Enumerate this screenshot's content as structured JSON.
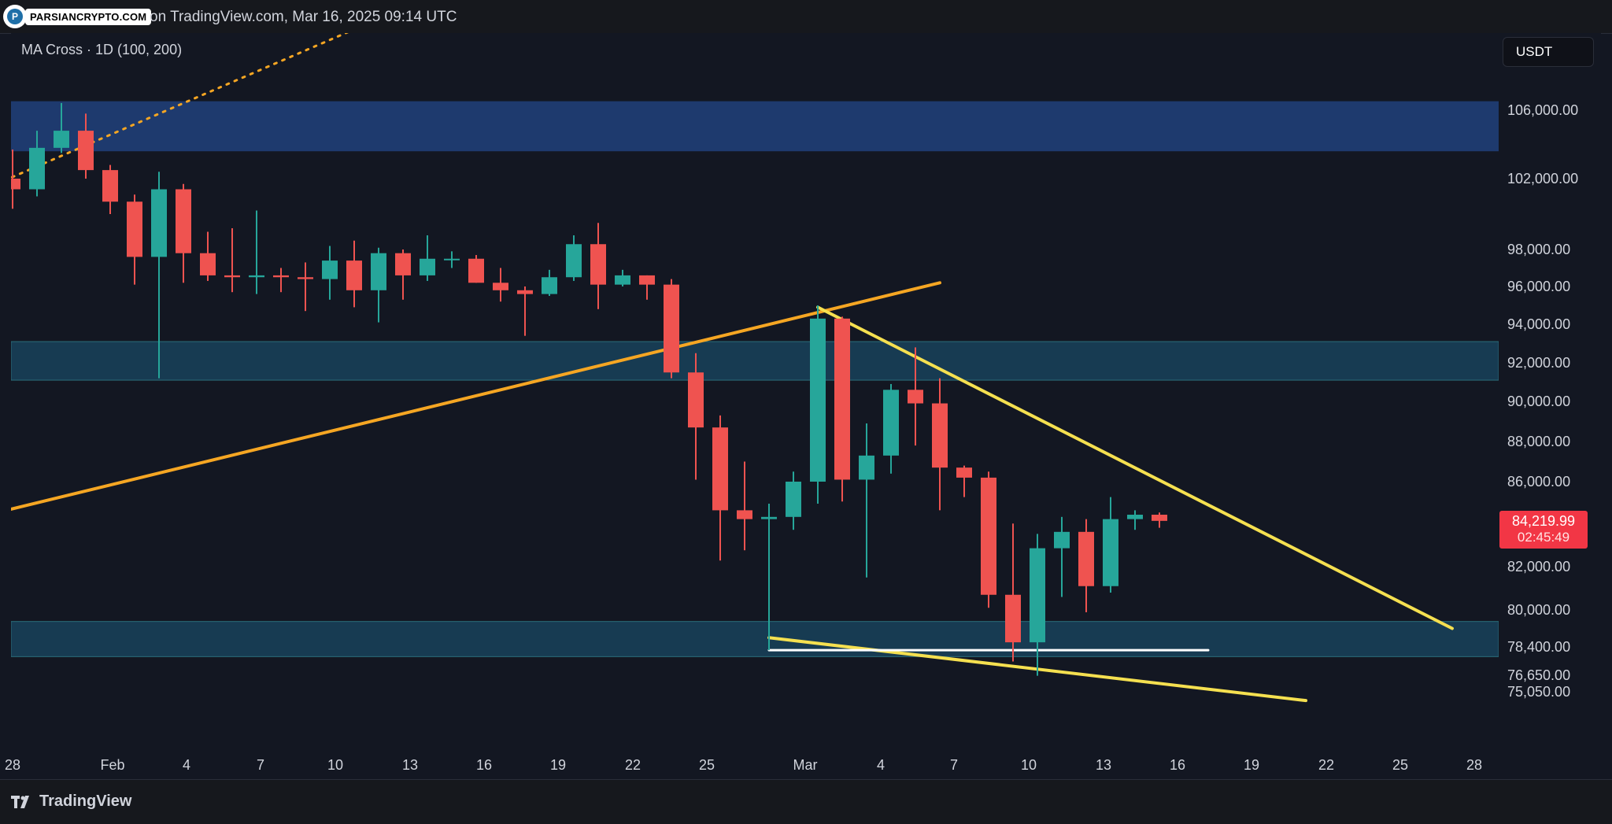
{
  "watermark": {
    "logo_text": "P",
    "text": "PARSIANCRYPTO.COM"
  },
  "header": {
    "caption": "on TradingView.com, Mar 16, 2025 09:14 UTC"
  },
  "indicator": {
    "label": "MA Cross · 1D (100, 200)"
  },
  "toolbar": {
    "currency": "USDT"
  },
  "last_price": {
    "value": "84,219.99",
    "countdown": "02:45:49",
    "color": "#f23645"
  },
  "price_axis": {
    "labels": [
      "106,000.00",
      "102,000.00",
      "98,000.00",
      "96,000.00",
      "94,000.00",
      "92,000.00",
      "90,000.00",
      "88,000.00",
      "86,000.00",
      "82,000.00",
      "80,000.00",
      "78,400.00",
      "76,650.00",
      "75,050.00"
    ]
  },
  "time_axis": {
    "labels": [
      "28",
      "Feb",
      "4",
      "7",
      "10",
      "13",
      "16",
      "19",
      "22",
      "25",
      "Mar",
      "4",
      "7",
      "10",
      "13",
      "16",
      "19",
      "22",
      "25",
      "28"
    ]
  },
  "footer": {
    "brand": "TradingView"
  },
  "colors": {
    "up": "#26a69a",
    "down": "#ef5350",
    "supply_zone": "#1e3a6e",
    "support_zone": "#173b52",
    "trend_orange": "#f5a623",
    "wedge_yellow": "#f5e050"
  },
  "chart_data": {
    "type": "candlestick",
    "symbol_pair": "USDT",
    "interval": "1D",
    "last_price": 84219.99,
    "ylim": [
      74000,
      108000
    ],
    "x_range": [
      "Jan 28",
      "Mar 29"
    ],
    "candles": [
      {
        "date": "Jan 28",
        "open": 102000,
        "high": 103700,
        "low": 100300,
        "close": 101400
      },
      {
        "date": "Jan 29",
        "open": 101400,
        "high": 104800,
        "low": 101000,
        "close": 103800
      },
      {
        "date": "Jan 30",
        "open": 103800,
        "high": 106400,
        "low": 103500,
        "close": 104800
      },
      {
        "date": "Jan 31",
        "open": 104800,
        "high": 105800,
        "low": 102000,
        "close": 102500
      },
      {
        "date": "Feb 1",
        "open": 102500,
        "high": 102800,
        "low": 100000,
        "close": 100700
      },
      {
        "date": "Feb 2",
        "open": 100700,
        "high": 101100,
        "low": 96100,
        "close": 97600
      },
      {
        "date": "Feb 3",
        "open": 97600,
        "high": 102400,
        "low": 91200,
        "close": 101400
      },
      {
        "date": "Feb 4",
        "open": 101400,
        "high": 101700,
        "low": 96200,
        "close": 97800
      },
      {
        "date": "Feb 5",
        "open": 97800,
        "high": 99000,
        "low": 96300,
        "close": 96600
      },
      {
        "date": "Feb 6",
        "open": 96600,
        "high": 99200,
        "low": 95700,
        "close": 96500
      },
      {
        "date": "Feb 7",
        "open": 96500,
        "high": 100200,
        "low": 95600,
        "close": 96600
      },
      {
        "date": "Feb 8",
        "open": 96600,
        "high": 97000,
        "low": 95700,
        "close": 96500
      },
      {
        "date": "Feb 9",
        "open": 96500,
        "high": 97300,
        "low": 94700,
        "close": 96400
      },
      {
        "date": "Feb 10",
        "open": 96400,
        "high": 98200,
        "low": 95300,
        "close": 97400
      },
      {
        "date": "Feb 11",
        "open": 97400,
        "high": 98500,
        "low": 94900,
        "close": 95800
      },
      {
        "date": "Feb 12",
        "open": 95800,
        "high": 98100,
        "low": 94100,
        "close": 97800
      },
      {
        "date": "Feb 13",
        "open": 97800,
        "high": 98000,
        "low": 95300,
        "close": 96600
      },
      {
        "date": "Feb 14",
        "open": 96600,
        "high": 98800,
        "low": 96300,
        "close": 97500
      },
      {
        "date": "Feb 15",
        "open": 97500,
        "high": 97900,
        "low": 97000,
        "close": 97500
      },
      {
        "date": "Feb 16",
        "open": 97500,
        "high": 97700,
        "low": 96200,
        "close": 96200
      },
      {
        "date": "Feb 17",
        "open": 96200,
        "high": 97000,
        "low": 95200,
        "close": 95800
      },
      {
        "date": "Feb 18",
        "open": 95800,
        "high": 96000,
        "low": 93400,
        "close": 95600
      },
      {
        "date": "Feb 19",
        "open": 95600,
        "high": 96900,
        "low": 95500,
        "close": 96500
      },
      {
        "date": "Feb 20",
        "open": 96500,
        "high": 98800,
        "low": 96300,
        "close": 98300
      },
      {
        "date": "Feb 21",
        "open": 98300,
        "high": 99500,
        "low": 94800,
        "close": 96100
      },
      {
        "date": "Feb 22",
        "open": 96100,
        "high": 96900,
        "low": 96000,
        "close": 96600
      },
      {
        "date": "Feb 23",
        "open": 96600,
        "high": 96600,
        "low": 95300,
        "close": 96100
      },
      {
        "date": "Feb 24",
        "open": 96100,
        "high": 96400,
        "low": 91200,
        "close": 91500
      },
      {
        "date": "Feb 25",
        "open": 91500,
        "high": 92500,
        "low": 86100,
        "close": 88700
      },
      {
        "date": "Feb 26",
        "open": 88700,
        "high": 89300,
        "low": 82300,
        "close": 84700
      },
      {
        "date": "Feb 27",
        "open": 84700,
        "high": 87000,
        "low": 82800,
        "close": 84300
      },
      {
        "date": "Feb 28",
        "open": 84300,
        "high": 85000,
        "low": 78200,
        "close": 84400
      },
      {
        "date": "Mar 1",
        "open": 84400,
        "high": 86500,
        "low": 83800,
        "close": 86000
      },
      {
        "date": "Mar 2",
        "open": 86000,
        "high": 95000,
        "low": 85000,
        "close": 94300
      },
      {
        "date": "Mar 3",
        "open": 94300,
        "high": 94400,
        "low": 85100,
        "close": 86100
      },
      {
        "date": "Mar 4",
        "open": 86100,
        "high": 88900,
        "low": 81500,
        "close": 87300
      },
      {
        "date": "Mar 5",
        "open": 87300,
        "high": 90900,
        "low": 86400,
        "close": 90600
      },
      {
        "date": "Mar 6",
        "open": 90600,
        "high": 92800,
        "low": 87800,
        "close": 89900
      },
      {
        "date": "Mar 7",
        "open": 89900,
        "high": 91200,
        "low": 84700,
        "close": 86700
      },
      {
        "date": "Mar 8",
        "open": 86700,
        "high": 86800,
        "low": 85300,
        "close": 86200
      },
      {
        "date": "Mar 9",
        "open": 86200,
        "high": 86500,
        "low": 80100,
        "close": 80700
      },
      {
        "date": "Mar 10",
        "open": 80700,
        "high": 84100,
        "low": 77500,
        "close": 78600
      },
      {
        "date": "Mar 11",
        "open": 78600,
        "high": 83600,
        "low": 76600,
        "close": 82900
      },
      {
        "date": "Mar 12",
        "open": 82900,
        "high": 84400,
        "low": 80600,
        "close": 83700
      },
      {
        "date": "Mar 13",
        "open": 83700,
        "high": 84300,
        "low": 79900,
        "close": 81100
      },
      {
        "date": "Mar 14",
        "open": 81100,
        "high": 85300,
        "low": 80800,
        "close": 84300
      },
      {
        "date": "Mar 15",
        "open": 84300,
        "high": 84700,
        "low": 83800,
        "close": 84500
      },
      {
        "date": "Mar 16",
        "open": 84500,
        "high": 84600,
        "low": 83900,
        "close": 84220
      }
    ],
    "zones": [
      {
        "name": "supply",
        "from": 103600,
        "to": 106500
      },
      {
        "name": "resistance",
        "from": 91100,
        "to": 93100
      },
      {
        "name": "support",
        "from": 77800,
        "to": 79500
      }
    ],
    "trendlines": [
      {
        "style": "dotted-orange",
        "from": [
          "Jan 27",
          101500
        ],
        "to": [
          "Feb 22",
          117000
        ]
      },
      {
        "style": "solid-orange",
        "from": [
          "Jan 27",
          84500
        ],
        "to": [
          "Mar 7",
          96200
        ]
      },
      {
        "style": "wedge-top-yellow",
        "from": [
          "Mar 2",
          94900
        ],
        "to": [
          "Mar 28",
          79200
        ]
      },
      {
        "style": "wedge-bottom-yellow",
        "from": [
          "Feb 28",
          78800
        ],
        "to": [
          "Mar 22",
          74200
        ]
      },
      {
        "style": "support-white",
        "from": [
          "Feb 28",
          78200
        ],
        "to": [
          "Mar 18",
          78200
        ]
      }
    ]
  }
}
